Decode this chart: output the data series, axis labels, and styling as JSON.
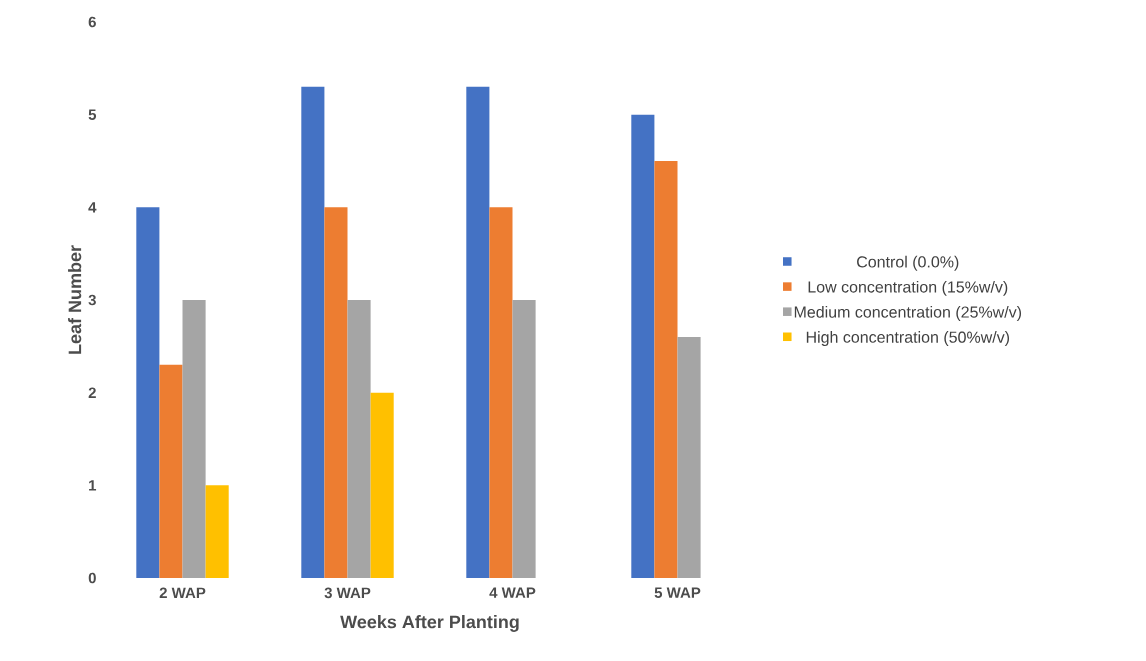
{
  "chart_data": {
    "type": "bar",
    "xlabel": "Weeks After Planting",
    "ylabel": "Leaf Number",
    "categories": [
      "2 WAP",
      "3 WAP",
      "4 WAP",
      "5 WAP"
    ],
    "series": [
      {
        "name": "Control (0.0%)",
        "color": "#4472c4",
        "values": [
          4,
          5.3,
          5.3,
          5.0
        ]
      },
      {
        "name": "Low concentration (15%w/v)",
        "color": "#ed7d31",
        "values": [
          2.3,
          4,
          4,
          4.5
        ]
      },
      {
        "name": "Medium concentration (25%w/v)",
        "color": "#a5a5a5",
        "values": [
          3,
          3,
          3,
          2.6
        ]
      },
      {
        "name": "High concentration (50%w/v)",
        "color": "#ffc000",
        "values": [
          1,
          2,
          0,
          0
        ]
      }
    ],
    "ylim": [
      0,
      6
    ],
    "yticks": [
      0,
      1,
      2,
      3,
      4,
      5,
      6
    ],
    "grid": false,
    "legend": "right"
  }
}
